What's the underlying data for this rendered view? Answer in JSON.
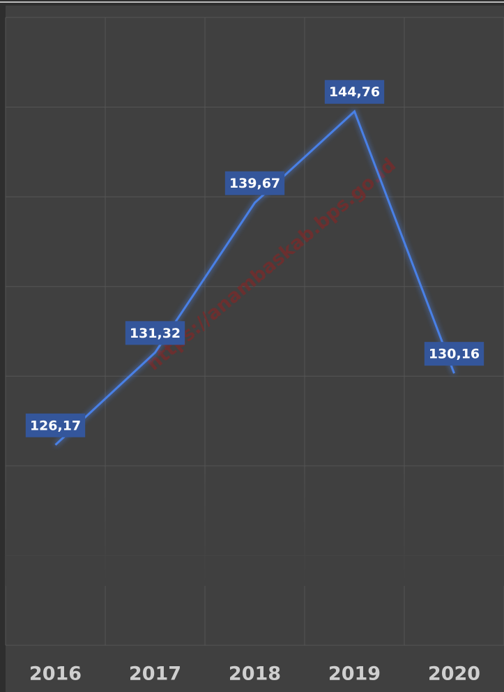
{
  "chart_data": {
    "type": "line",
    "watermark": "https://anambaskab.bps.go.id",
    "categories": [
      "2016",
      "2017",
      "2018",
      "2019",
      "2020"
    ],
    "series": [
      {
        "name": null,
        "color": "#4a80e6",
        "values": [
          126.17,
          131.32,
          139.67,
          144.76,
          130.16
        ],
        "value_labels": [
          "126,17",
          "131,32",
          "139,67",
          "144,76",
          "130,16"
        ]
      }
    ],
    "ylim": [
      115,
      150
    ],
    "yticks": [
      115,
      120,
      125,
      130,
      135,
      140,
      145,
      150
    ],
    "grid": true,
    "label_color": "#34569b"
  }
}
